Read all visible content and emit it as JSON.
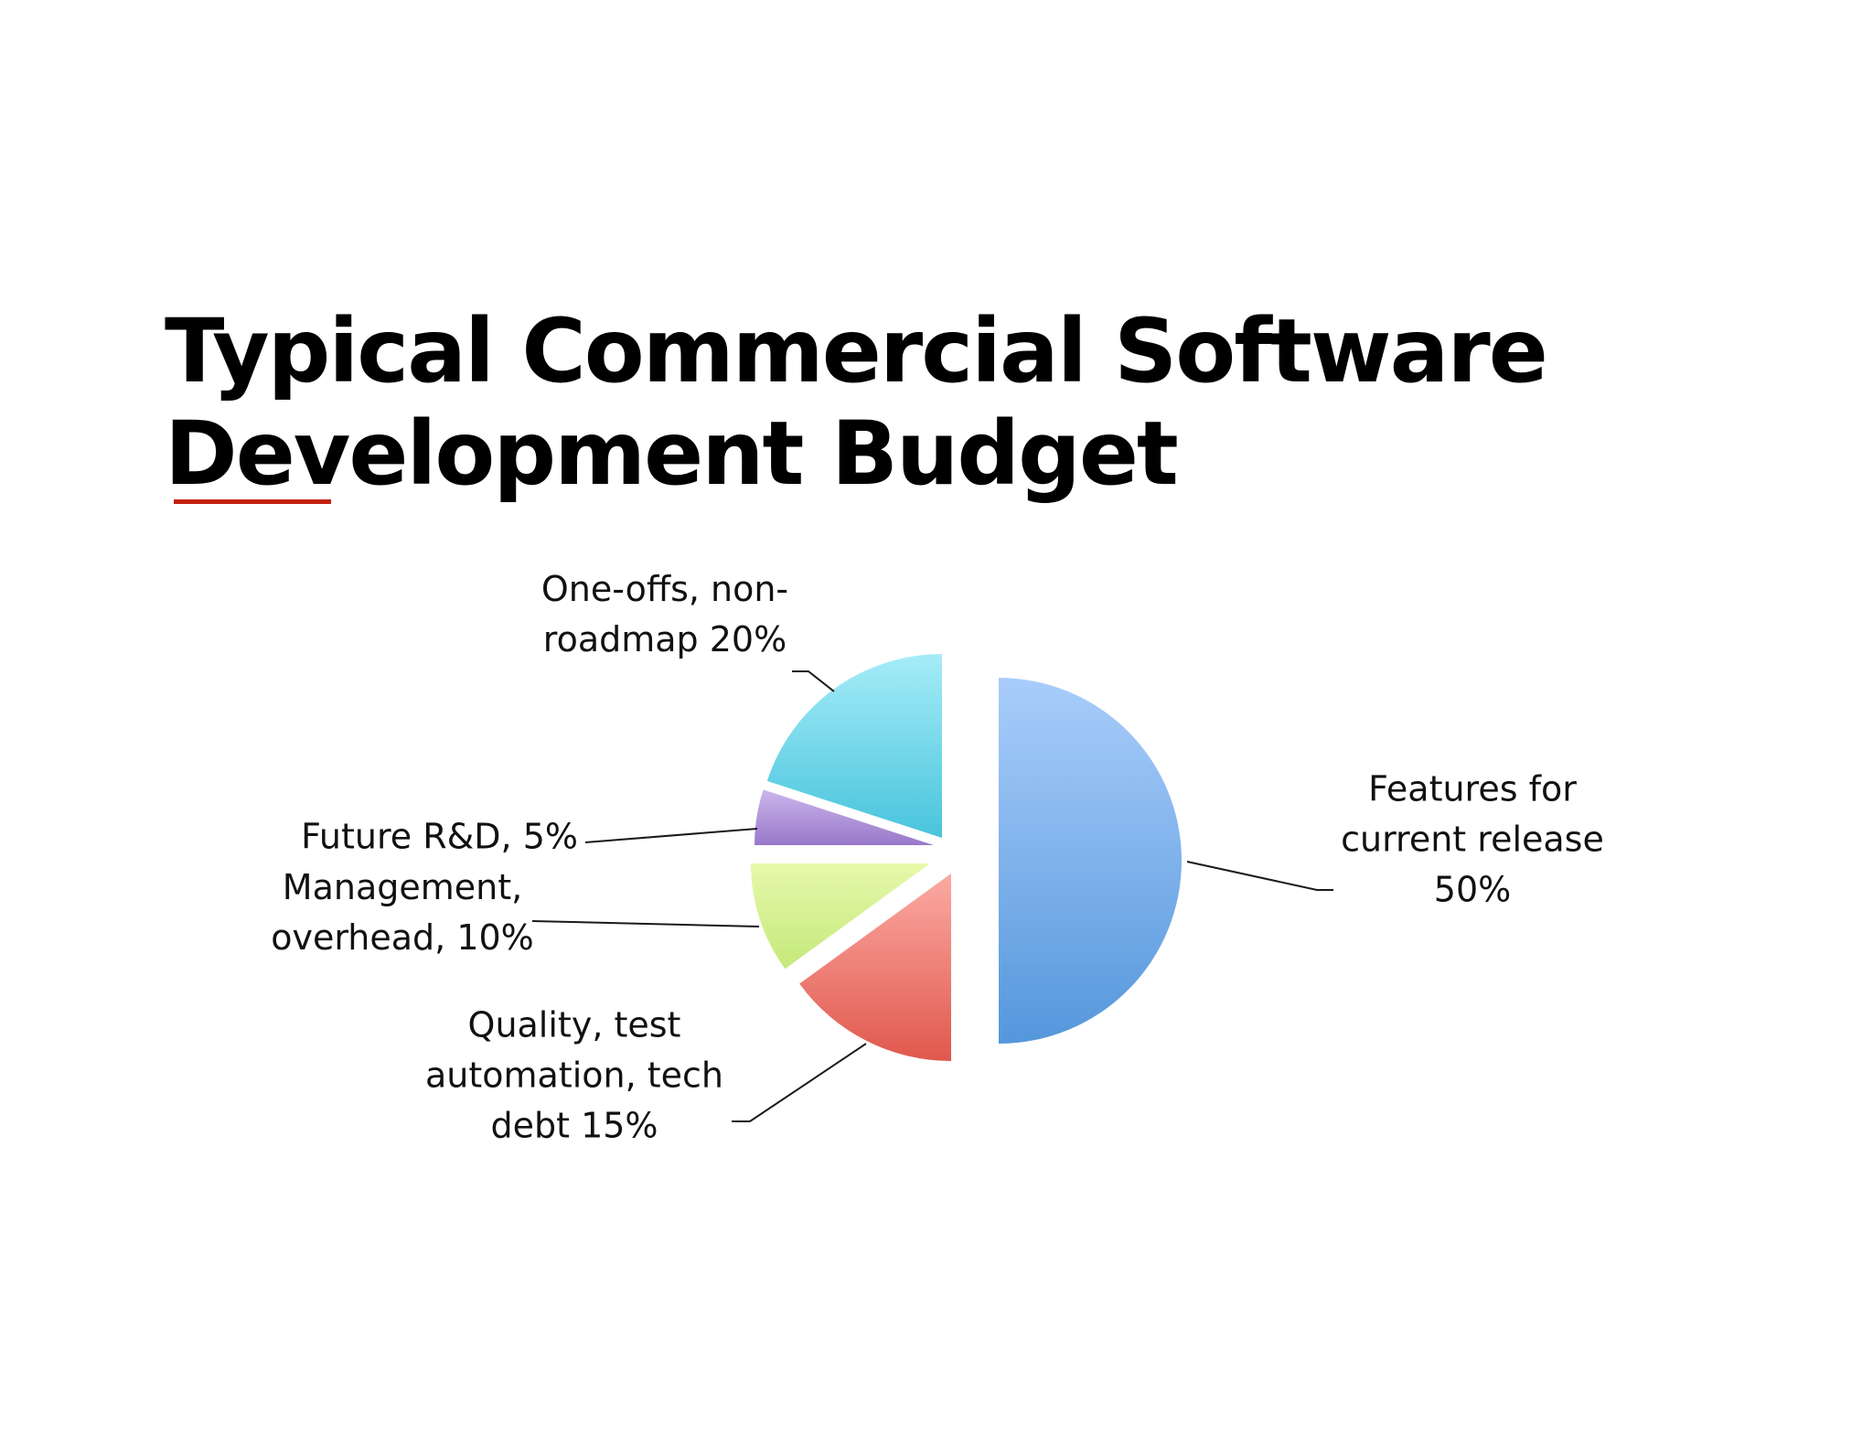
{
  "slide": {
    "title_line_1": "Typical Commercial Software",
    "title_line_2": "Development Budget",
    "accent_color": "#c4210f"
  },
  "chart_data": {
    "type": "pie",
    "title": "Typical Commercial Software Development Budget",
    "start_angle_deg": 0,
    "direction": "clockwise",
    "slices": [
      {
        "name": "Features for current release",
        "value": 50,
        "label_lines": [
          "Features for",
          "current release",
          "50%"
        ],
        "label_anchor": "middle",
        "color_light": "#a9cdfa",
        "color_dark": "#5597dc"
      },
      {
        "name": "Quality, test automation, tech debt",
        "value": 15,
        "label_lines": [
          "Quality, test",
          "automation, tech",
          "debt 15%"
        ],
        "label_anchor": "middle",
        "color_light": "#fbaaa3",
        "color_dark": "#e0584d"
      },
      {
        "name": "Management, overhead",
        "value": 10,
        "label_lines": [
          "Management,",
          "overhead, 10%"
        ],
        "label_anchor": "middle",
        "color_light": "#e6f9ab",
        "color_dark": "#c5e87a"
      },
      {
        "name": "Future R&D",
        "value": 5,
        "label_lines": [
          "Future R&D, 5%"
        ],
        "label_anchor": "end",
        "color_light": "#cbb6ec",
        "color_dark": "#9878c8"
      },
      {
        "name": "One-offs, non-roadmap",
        "value": 20,
        "label_lines": [
          "One-offs, non-",
          "roadmap 20%"
        ],
        "label_anchor": "middle",
        "color_light": "#a6ecf8",
        "color_dark": "#48c4dc"
      }
    ],
    "legend": "none",
    "data_labels": "outside with leader lines"
  }
}
